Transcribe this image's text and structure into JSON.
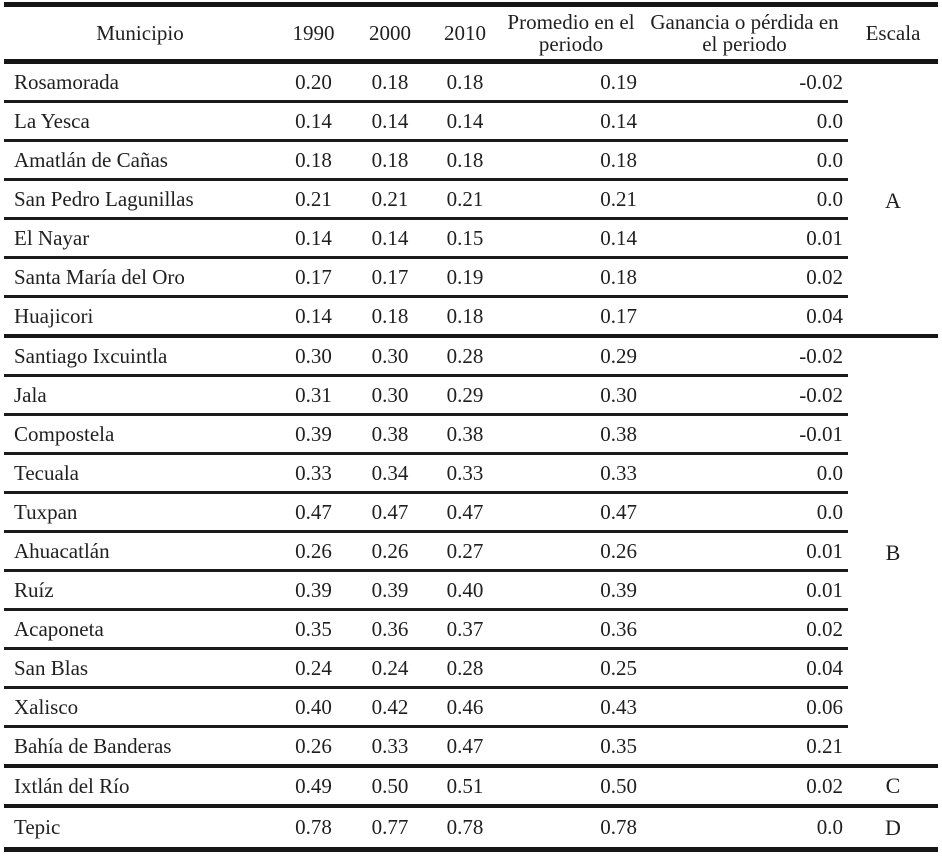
{
  "table": {
    "headers": {
      "municipio": "Municipio",
      "y1990": "1990",
      "y2000": "2000",
      "y2010": "2010",
      "promedio": "Promedio en el periodo",
      "ganancia": "Ganancia o pérdida en el periodo",
      "escala": "Escala"
    },
    "rows": [
      {
        "municipio": "Rosamorada",
        "y1990": "0.20",
        "y2000": "0.18",
        "y2010": "0.18",
        "promedio": "0.19",
        "ganancia": "-0.02",
        "escala": ""
      },
      {
        "municipio": "La Yesca",
        "y1990": "0.14",
        "y2000": "0.14",
        "y2010": "0.14",
        "promedio": "0.14",
        "ganancia": "0.0",
        "escala": ""
      },
      {
        "municipio": "Amatlán de Cañas",
        "y1990": "0.18",
        "y2000": "0.18",
        "y2010": "0.18",
        "promedio": "0.18",
        "ganancia": "0.0",
        "escala": ""
      },
      {
        "municipio": "San Pedro Lagunillas",
        "y1990": "0.21",
        "y2000": "0.21",
        "y2010": "0.21",
        "promedio": "0.21",
        "ganancia": "0.0",
        "escala": "A"
      },
      {
        "municipio": "El Nayar",
        "y1990": "0.14",
        "y2000": "0.14",
        "y2010": "0.15",
        "promedio": "0.14",
        "ganancia": "0.01",
        "escala": ""
      },
      {
        "municipio": "Santa María del Oro",
        "y1990": "0.17",
        "y2000": "0.17",
        "y2010": "0.19",
        "promedio": "0.18",
        "ganancia": "0.02",
        "escala": ""
      },
      {
        "municipio": "Huajicori",
        "y1990": "0.14",
        "y2000": "0.18",
        "y2010": "0.18",
        "promedio": "0.17",
        "ganancia": "0.04",
        "escala": ""
      },
      {
        "municipio": "Santiago Ixcuintla",
        "y1990": "0.30",
        "y2000": "0.30",
        "y2010": "0.28",
        "promedio": "0.29",
        "ganancia": "-0.02",
        "escala": ""
      },
      {
        "municipio": "Jala",
        "y1990": "0.31",
        "y2000": "0.30",
        "y2010": "0.29",
        "promedio": "0.30",
        "ganancia": "-0.02",
        "escala": ""
      },
      {
        "municipio": "Compostela",
        "y1990": "0.39",
        "y2000": "0.38",
        "y2010": "0.38",
        "promedio": "0.38",
        "ganancia": "-0.01",
        "escala": ""
      },
      {
        "municipio": "Tecuala",
        "y1990": "0.33",
        "y2000": "0.34",
        "y2010": "0.33",
        "promedio": "0.33",
        "ganancia": "0.0",
        "escala": ""
      },
      {
        "municipio": "Tuxpan",
        "y1990": "0.47",
        "y2000": "0.47",
        "y2010": "0.47",
        "promedio": "0.47",
        "ganancia": "0.0",
        "escala": ""
      },
      {
        "municipio": "Ahuacatlán",
        "y1990": "0.26",
        "y2000": "0.26",
        "y2010": "0.27",
        "promedio": "0.26",
        "ganancia": "0.01",
        "escala": "B"
      },
      {
        "municipio": "Ruíz",
        "y1990": "0.39",
        "y2000": "0.39",
        "y2010": "0.40",
        "promedio": "0.39",
        "ganancia": "0.01",
        "escala": ""
      },
      {
        "municipio": "Acaponeta",
        "y1990": "0.35",
        "y2000": "0.36",
        "y2010": "0.37",
        "promedio": "0.36",
        "ganancia": "0.02",
        "escala": ""
      },
      {
        "municipio": "San Blas",
        "y1990": "0.24",
        "y2000": "0.24",
        "y2010": "0.28",
        "promedio": "0.25",
        "ganancia": "0.04",
        "escala": ""
      },
      {
        "municipio": "Xalisco",
        "y1990": "0.40",
        "y2000": "0.42",
        "y2010": "0.46",
        "promedio": "0.43",
        "ganancia": "0.06",
        "escala": ""
      },
      {
        "municipio": "Bahía de Banderas",
        "y1990": "0.26",
        "y2000": "0.33",
        "y2010": "0.47",
        "promedio": "0.35",
        "ganancia": "0.21",
        "escala": ""
      },
      {
        "municipio": "Ixtlán del Río",
        "y1990": "0.49",
        "y2000": "0.50",
        "y2010": "0.51",
        "promedio": "0.50",
        "ganancia": "0.02",
        "escala": "C"
      },
      {
        "municipio": "Tepic",
        "y1990": "0.78",
        "y2000": "0.77",
        "y2010": "0.78",
        "promedio": "0.78",
        "ganancia": "0.0",
        "escala": "D"
      }
    ]
  },
  "colors": {
    "line": "#161616",
    "text": "#1f1f1f",
    "background": "#ffffff"
  }
}
